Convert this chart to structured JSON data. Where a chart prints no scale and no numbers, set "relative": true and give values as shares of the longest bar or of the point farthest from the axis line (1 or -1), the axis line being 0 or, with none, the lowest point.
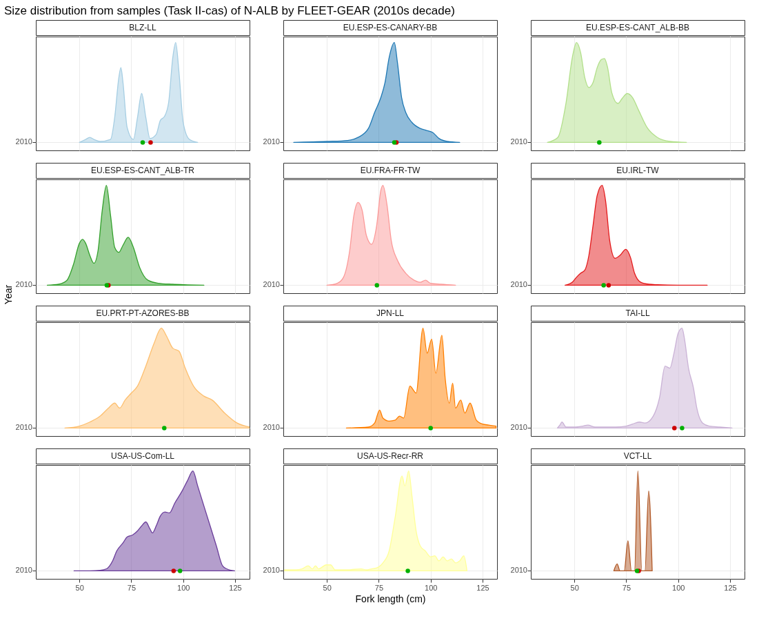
{
  "chart_data": [
    {
      "type": "other",
      "title": "Size distribution from samples (Task II-cas) of N-ALB by FLEET-GEAR (2010s decade)",
      "xlabel": "Fork length (cm)",
      "ylabel": "Year"
    },
    {
      "type": "area",
      "title": "BLZ-LL",
      "relative": true,
      "xlim": [
        29,
        132
      ],
      "xticks": [
        50,
        75,
        100,
        125
      ],
      "annotations": [
        "2010"
      ],
      "grid": true,
      "tick_labels": "y",
      "series": [
        {
          "type": "area",
          "color": "#a6cee3",
          "x": [
            50,
            53,
            55,
            57,
            60,
            65,
            67,
            69,
            70,
            71,
            73,
            76,
            78,
            80,
            82,
            84,
            87,
            89,
            91,
            93,
            95,
            96.4,
            98,
            100,
            103,
            107
          ],
          "values": [
            0,
            0.03,
            0.05,
            0.03,
            0.01,
            0.03,
            0.25,
            0.65,
            0.75,
            0.6,
            0.15,
            0.03,
            0.25,
            0.49,
            0.25,
            0.04,
            0.08,
            0.22,
            0.26,
            0.4,
            0.85,
            1,
            0.7,
            0.2,
            0.03,
            0
          ]
        },
        {
          "type": "scatter",
          "color": "#cc0000",
          "x": [
            84.3
          ],
          "values": [
            0
          ]
        },
        {
          "type": "scatter",
          "color": "#00b000",
          "x": [
            80.5
          ],
          "values": [
            0
          ]
        }
      ]
    },
    {
      "type": "area",
      "title": "EU.ESP-ES-CANARY-BB",
      "relative": true,
      "xlim": [
        29,
        132
      ],
      "xticks": [
        50,
        75,
        100,
        125
      ],
      "annotations": [
        "2010"
      ],
      "grid": true,
      "tick_labels": "y",
      "series": [
        {
          "type": "area",
          "color": "#1f78b4",
          "x": [
            34,
            50,
            60,
            65,
            70,
            73,
            76,
            78,
            80,
            82.5,
            84,
            86,
            88,
            91,
            95,
            98,
            101,
            104,
            108,
            114
          ],
          "values": [
            0,
            0.01,
            0.02,
            0.05,
            0.14,
            0.3,
            0.45,
            0.6,
            0.85,
            1,
            0.8,
            0.45,
            0.3,
            0.2,
            0.14,
            0.12,
            0.1,
            0.04,
            0.01,
            0
          ]
        },
        {
          "type": "scatter",
          "color": "#cc0000",
          "x": [
            83.5
          ],
          "values": [
            0
          ]
        },
        {
          "type": "scatter",
          "color": "#00b000",
          "x": [
            82.5
          ],
          "values": [
            0
          ]
        }
      ]
    },
    {
      "type": "area",
      "title": "EU.ESP-ES-CANT_ALB-BB",
      "relative": true,
      "xlim": [
        29,
        132
      ],
      "xticks": [
        50,
        75,
        100,
        125
      ],
      "annotations": [
        "2010"
      ],
      "grid": true,
      "tick_labels": "y",
      "series": [
        {
          "type": "area",
          "color": "#b2df8a",
          "x": [
            37,
            42,
            46,
            49,
            51,
            53,
            55,
            57,
            59,
            61,
            63,
            64.5,
            66,
            68,
            71,
            73,
            75.5,
            78,
            81,
            85,
            90,
            96,
            104
          ],
          "values": [
            0,
            0.05,
            0.4,
            0.85,
            1,
            0.9,
            0.65,
            0.55,
            0.6,
            0.75,
            0.83,
            0.84,
            0.75,
            0.5,
            0.39,
            0.44,
            0.49,
            0.45,
            0.32,
            0.15,
            0.05,
            0.01,
            0
          ]
        },
        {
          "type": "scatter",
          "color": "#00b000",
          "x": [
            62
          ],
          "values": [
            0
          ]
        }
      ]
    },
    {
      "type": "area",
      "title": "EU.ESP-ES-CANT_ALB-TR",
      "relative": true,
      "xlim": [
        29,
        132
      ],
      "xticks": [
        50,
        75,
        100,
        125
      ],
      "annotations": [
        "2010"
      ],
      "grid": true,
      "tick_labels": "y",
      "series": [
        {
          "type": "area",
          "color": "#33a02c",
          "x": [
            34.5,
            40,
            44,
            47,
            50,
            51.5,
            53,
            55,
            57,
            59,
            61,
            63,
            65,
            67,
            69,
            71,
            73.5,
            76,
            79,
            83,
            88,
            95,
            110
          ],
          "values": [
            0,
            0.01,
            0.05,
            0.2,
            0.42,
            0.46,
            0.42,
            0.3,
            0.22,
            0.35,
            0.75,
            1,
            0.7,
            0.38,
            0.33,
            0.4,
            0.48,
            0.38,
            0.18,
            0.05,
            0.02,
            0.01,
            0
          ]
        },
        {
          "type": "scatter",
          "color": "#cc0000",
          "x": [
            64
          ],
          "values": [
            0
          ]
        },
        {
          "type": "scatter",
          "color": "#00b000",
          "x": [
            63.2
          ],
          "values": [
            0
          ]
        }
      ]
    },
    {
      "type": "area",
      "title": "EU.FRA-FR-TW",
      "relative": true,
      "xlim": [
        29,
        132
      ],
      "xticks": [
        50,
        75,
        100,
        125
      ],
      "annotations": [
        "2010"
      ],
      "grid": true,
      "tick_labels": "y",
      "series": [
        {
          "type": "area",
          "color": "#fb9a99",
          "x": [
            50,
            55,
            58,
            61,
            63,
            65,
            67,
            69,
            71.5,
            74,
            76,
            77,
            79,
            81,
            84,
            88,
            92,
            95,
            97.5,
            100,
            105,
            112
          ],
          "values": [
            0,
            0.02,
            0.08,
            0.35,
            0.7,
            0.83,
            0.75,
            0.5,
            0.41,
            0.6,
            0.95,
            1,
            0.8,
            0.45,
            0.25,
            0.12,
            0.05,
            0.03,
            0.05,
            0.02,
            0.01,
            0
          ]
        },
        {
          "type": "scatter",
          "color": "#00b000",
          "x": [
            74.1
          ],
          "values": [
            0
          ]
        }
      ]
    },
    {
      "type": "area",
      "title": "EU.IRL-TW",
      "relative": true,
      "xlim": [
        29,
        132
      ],
      "xticks": [
        50,
        75,
        100,
        125
      ],
      "annotations": [
        "2010"
      ],
      "grid": true,
      "tick_labels": "y",
      "series": [
        {
          "type": "area",
          "color": "#e31a1c",
          "x": [
            45.5,
            49,
            51,
            53,
            55,
            57,
            59,
            61,
            63.4,
            65,
            67,
            69.6,
            72,
            74.8,
            77,
            79,
            82,
            86,
            90,
            100,
            114
          ],
          "values": [
            0,
            0.03,
            0.08,
            0.12,
            0.15,
            0.3,
            0.6,
            0.9,
            1,
            0.85,
            0.45,
            0.27,
            0.3,
            0.36,
            0.28,
            0.12,
            0.03,
            0.01,
            0.005,
            0,
            0
          ]
        },
        {
          "type": "scatter",
          "color": "#cc0000",
          "x": [
            66.5
          ],
          "values": [
            0
          ]
        },
        {
          "type": "scatter",
          "color": "#00b000",
          "x": [
            64.1
          ],
          "values": [
            0
          ]
        }
      ]
    },
    {
      "type": "area",
      "title": "EU.PRT-PT-AZORES-BB",
      "relative": true,
      "xlim": [
        29,
        132
      ],
      "xticks": [
        50,
        75,
        100,
        125
      ],
      "annotations": [
        "2010"
      ],
      "grid": true,
      "tick_labels": "y",
      "series": [
        {
          "type": "area",
          "color": "#fdbf6f",
          "x": [
            43,
            50,
            55,
            60,
            64,
            67,
            69.4,
            72,
            75,
            78,
            82,
            86,
            89.5,
            92,
            95,
            98,
            101,
            105,
            110,
            114,
            120,
            126,
            132
          ],
          "values": [
            0,
            0.02,
            0.06,
            0.12,
            0.2,
            0.25,
            0.2,
            0.28,
            0.35,
            0.42,
            0.62,
            0.85,
            1,
            0.92,
            0.8,
            0.77,
            0.6,
            0.42,
            0.32,
            0.28,
            0.15,
            0.05,
            0.01
          ]
        },
        {
          "type": "scatter",
          "color": "#00b000",
          "x": [
            90.9
          ],
          "values": [
            0
          ]
        }
      ]
    },
    {
      "type": "area",
      "title": "JPN-LL",
      "relative": true,
      "xlim": [
        29,
        132
      ],
      "xticks": [
        50,
        75,
        100,
        125
      ],
      "annotations": [
        "2010"
      ],
      "grid": true,
      "tick_labels": "y",
      "series": [
        {
          "type": "area",
          "color": "#ff7f00",
          "x": [
            59.4,
            70,
            73,
            75.4,
            77,
            80,
            83,
            85,
            87,
            90,
            93,
            96.3,
            98.3,
            100.5,
            102.5,
            105.4,
            107,
            109,
            110.6,
            112,
            114.5,
            116.5,
            119,
            122,
            125,
            128,
            131.5
          ],
          "values": [
            0,
            0.01,
            0.05,
            0.18,
            0.1,
            0.07,
            0.08,
            0.12,
            0.1,
            0.42,
            0.35,
            1,
            0.75,
            0.89,
            0.55,
            0.93,
            0.5,
            0.25,
            0.45,
            0.2,
            0.28,
            0.15,
            0.25,
            0.08,
            0.04,
            0.03,
            0.02
          ]
        },
        {
          "type": "scatter",
          "color": "#00b000",
          "x": [
            100
          ],
          "values": [
            0
          ]
        }
      ]
    },
    {
      "type": "area",
      "title": "TAI-LL",
      "relative": true,
      "xlim": [
        29,
        132
      ],
      "xticks": [
        50,
        75,
        100,
        125
      ],
      "annotations": [
        "2010"
      ],
      "grid": true,
      "tick_labels": "y",
      "series": [
        {
          "type": "area",
          "color": "#cab2d6",
          "x": [
            41.8,
            43,
            44,
            46,
            50,
            54,
            56.5,
            60,
            65,
            70,
            75,
            78,
            81.3,
            84,
            88,
            91,
            93.7,
            96,
            98,
            100,
            101.9,
            103,
            105,
            107.4,
            109,
            111.8,
            115,
            120,
            126
          ],
          "values": [
            0,
            0.03,
            0.06,
            0.01,
            0.01,
            0.02,
            0.03,
            0.01,
            0.01,
            0.01,
            0.02,
            0.04,
            0.06,
            0.05,
            0.12,
            0.3,
            0.62,
            0.6,
            0.75,
            0.95,
            1,
            0.9,
            0.6,
            0.4,
            0.2,
            0.05,
            0.02,
            0.01,
            0
          ]
        },
        {
          "type": "scatter",
          "color": "#cc0000",
          "x": [
            98.2
          ],
          "values": [
            0
          ]
        },
        {
          "type": "scatter",
          "color": "#00b000",
          "x": [
            101.9
          ],
          "values": [
            0
          ]
        }
      ]
    },
    {
      "type": "area",
      "title": "USA-US-Com-LL",
      "relative": true,
      "xlim": [
        29,
        132
      ],
      "xticks": [
        50,
        75,
        100,
        125
      ],
      "annotations": [
        "2010"
      ],
      "grid": true,
      "series": [
        {
          "type": "area",
          "color": "#6a3d9a",
          "x": [
            47.4,
            55,
            60,
            63,
            66,
            68,
            71,
            73,
            75.7,
            78,
            80,
            82,
            84,
            85.2,
            87,
            89,
            91.2,
            93.4,
            96,
            99.5,
            102,
            104.7,
            107,
            110,
            113,
            116,
            119,
            121,
            124.8
          ],
          "values": [
            0,
            0,
            0.005,
            0.02,
            0.1,
            0.2,
            0.28,
            0.34,
            0.36,
            0.4,
            0.45,
            0.49,
            0.42,
            0.38,
            0.45,
            0.55,
            0.59,
            0.58,
            0.68,
            0.8,
            0.9,
            1,
            0.85,
            0.65,
            0.45,
            0.25,
            0.05,
            0.02,
            0
          ]
        },
        {
          "type": "scatter",
          "color": "#cc0000",
          "x": [
            95.4
          ],
          "values": [
            0
          ]
        },
        {
          "type": "scatter",
          "color": "#00b000",
          "x": [
            98.5
          ],
          "values": [
            0
          ]
        }
      ]
    },
    {
      "type": "area",
      "title": "USA-US-Recr-RR",
      "relative": true,
      "xlim": [
        29,
        132
      ],
      "xticks": [
        50,
        75,
        100,
        125
      ],
      "annotations": [
        "2010"
      ],
      "grid": true,
      "series": [
        {
          "type": "area",
          "color": "#ffff99",
          "x": [
            29.6,
            35,
            38,
            41,
            43,
            44.5,
            46,
            49.7,
            51.8,
            54,
            60,
            66.5,
            69,
            71.5,
            74,
            77,
            80,
            83,
            86.2,
            87.6,
            89.4,
            91,
            93,
            95,
            97.4,
            100,
            102,
            104,
            106,
            108,
            110,
            112,
            114,
            116,
            117.5
          ],
          "values": [
            0.01,
            0.01,
            0.02,
            0.05,
            0.02,
            0.05,
            0.02,
            0.06,
            0.06,
            0.01,
            0.01,
            0.02,
            0.01,
            0.02,
            0.03,
            0.08,
            0.2,
            0.55,
            0.95,
            0.85,
            1,
            0.75,
            0.4,
            0.25,
            0.2,
            0.14,
            0.15,
            0.1,
            0.14,
            0.1,
            0.12,
            0.08,
            0.1,
            0.15,
            0
          ]
        },
        {
          "type": "scatter",
          "color": "#00b000",
          "x": [
            89
          ],
          "values": [
            0
          ]
        }
      ]
    },
    {
      "type": "area",
      "title": "VCT-LL",
      "relative": true,
      "xlim": [
        29,
        132
      ],
      "xticks": [
        50,
        75,
        100,
        125
      ],
      "annotations": [
        "2010"
      ],
      "grid": true,
      "series": [
        {
          "type": "area",
          "color": "#b15928",
          "x": [
            69,
            70.6,
            72,
            74,
            75.8,
            77.5,
            79,
            80.6,
            82.5,
            84,
            85.8,
            87.5
          ],
          "values": [
            0,
            0.07,
            0,
            0,
            0.3,
            0,
            0,
            1,
            0,
            0,
            0.8,
            0
          ]
        },
        {
          "type": "scatter",
          "color": "#cc0000",
          "x": [
            81
          ],
          "values": [
            0
          ]
        },
        {
          "type": "scatter",
          "color": "#00b000",
          "x": [
            80.2
          ],
          "values": [
            0
          ]
        }
      ]
    }
  ]
}
